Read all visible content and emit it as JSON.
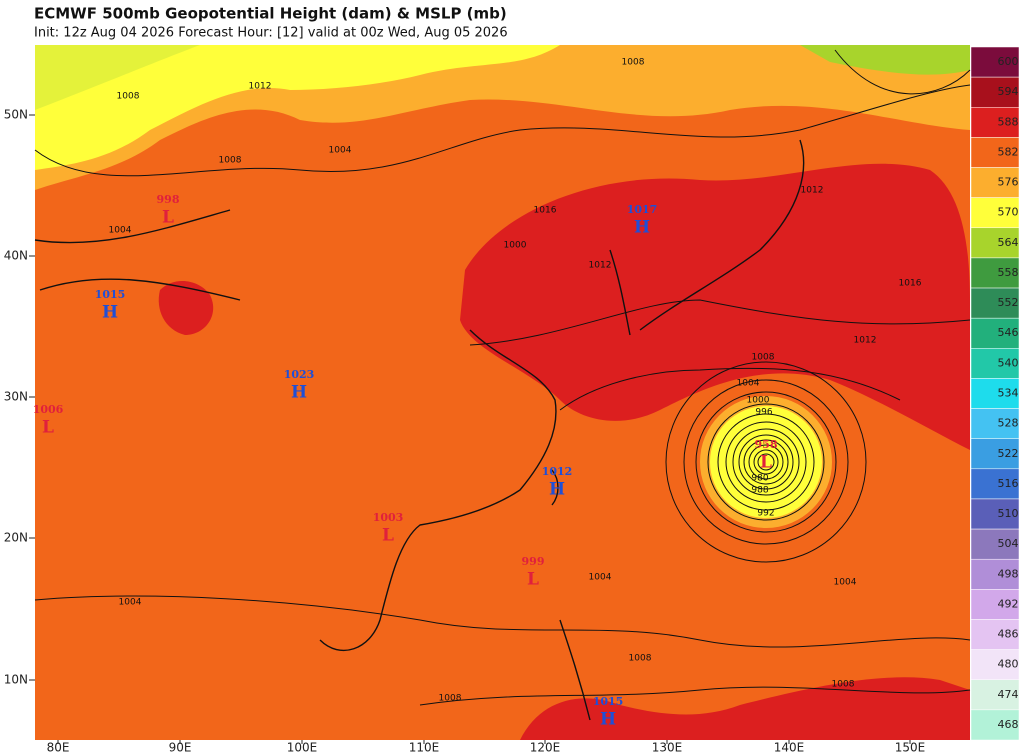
{
  "header": {
    "title": "ECMWF 500mb Geopotential Height (dam) & MSLP (mb)",
    "subtitle": "Init: 12z Aug 04 2026   Forecast Hour: [12]   valid at 00z Wed, Aug 05 2026"
  },
  "axes": {
    "lat_labels": [
      "50N",
      "40N",
      "30N",
      "20N",
      "10N"
    ],
    "lon_labels": [
      "80E",
      "90E",
      "100E",
      "110E",
      "120E",
      "130E",
      "140E",
      "150E"
    ]
  },
  "colorbar": {
    "levels": [
      600,
      594,
      588,
      582,
      576,
      570,
      564,
      558,
      552,
      546,
      540,
      534,
      528,
      522,
      516,
      510,
      504,
      498,
      492,
      486,
      480,
      474,
      468
    ],
    "colors": [
      "#7b0c3c",
      "#a8101c",
      "#dc1f1f",
      "#f2661a",
      "#fcae2e",
      "#ffff3a",
      "#a8d42c",
      "#3f9b3f",
      "#2e8c58",
      "#22b07c",
      "#22c8a8",
      "#1edcec",
      "#44c2f2",
      "#3a9ee2",
      "#3a72d2",
      "#5a5fb8",
      "#8c78bc",
      "#b08ed8",
      "#d2a8ea",
      "#e4c4f2",
      "#f2e4f8",
      "#d8f2e2",
      "#b2f2d8"
    ]
  },
  "centers": [
    {
      "type": "H",
      "value": "1017"
    },
    {
      "type": "H",
      "value": "1015"
    },
    {
      "type": "H",
      "value": "1023"
    },
    {
      "type": "H",
      "value": "1012"
    },
    {
      "type": "H",
      "value": "1015"
    },
    {
      "type": "L",
      "value": "998"
    },
    {
      "type": "L",
      "value": "1006"
    },
    {
      "type": "L",
      "value": "1003"
    },
    {
      "type": "L",
      "value": "999"
    },
    {
      "type": "L",
      "value": "958"
    }
  ],
  "isobar_labels": [
    "1008",
    "1012",
    "1008",
    "1004",
    "1016",
    "1012",
    "1008",
    "1004",
    "1000",
    "996",
    "1000",
    "1004",
    "1008",
    "1004",
    "1004",
    "1008",
    "1008",
    "1008",
    "1004",
    "1012",
    "1016",
    "1012",
    "988",
    "992",
    "980"
  ]
}
